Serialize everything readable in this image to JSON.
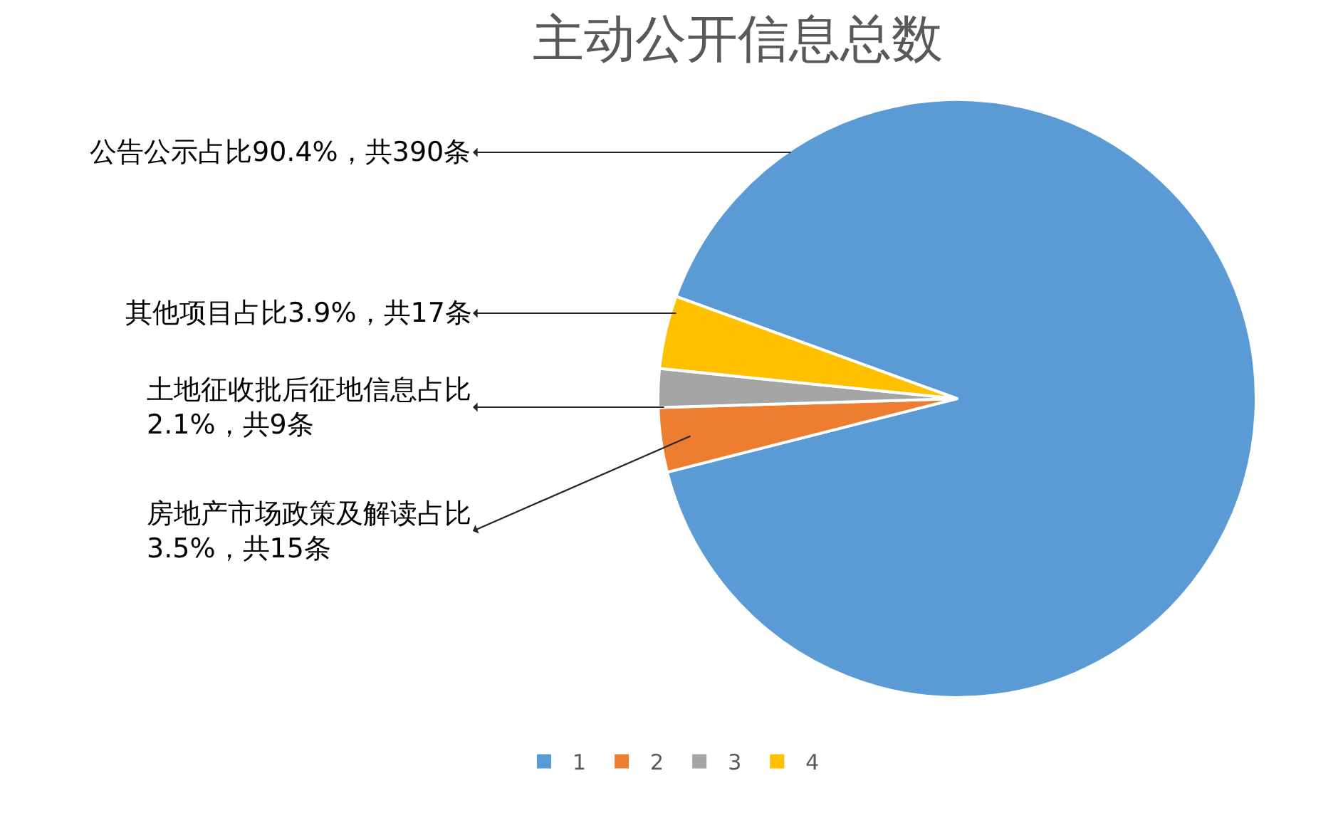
{
  "chart_data": {
    "type": "pie",
    "title": "主动公开信息总数",
    "categories": [
      "1",
      "2",
      "3",
      "4"
    ],
    "values": [
      390,
      15,
      9,
      17
    ],
    "colors": [
      "#5b9bd5",
      "#ed7d31",
      "#a5a5a5",
      "#ffc000"
    ],
    "value_labels": [
      "公告公示占比90.4%，共390条",
      "房地产市场政策及解读占比\n3.5%，共15条",
      "土地征收批后征地信息占比\n2.1%，共9条",
      "其他项目占比3.9%，共17条"
    ],
    "legend": "bottom"
  }
}
